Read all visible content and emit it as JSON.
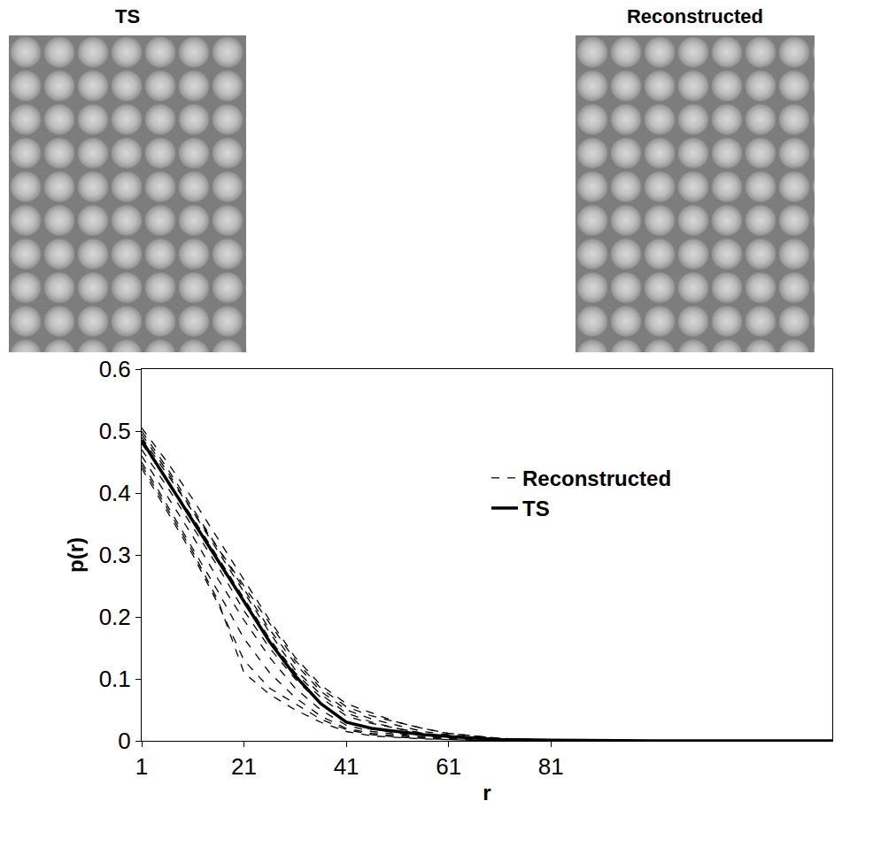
{
  "panels": [
    {
      "title": "TS"
    },
    {
      "title": "Reconstructed"
    }
  ],
  "chart_data": {
    "type": "line",
    "x_label": "r",
    "y_label": "p(r)",
    "x": [
      1,
      6,
      11,
      16,
      21,
      26,
      31,
      36,
      41,
      46,
      51,
      56,
      61,
      71,
      81,
      101,
      136
    ],
    "xlim": [
      1,
      136
    ],
    "xticks": [
      1,
      21,
      41,
      61,
      81
    ],
    "ylim": [
      0,
      0.6
    ],
    "yticks": [
      0,
      0.1,
      0.2,
      0.3,
      0.4,
      0.5,
      0.6
    ],
    "grid": false,
    "legend": "upper right",
    "series": [
      {
        "name": "TS",
        "color": "#000000",
        "line_style": "solid",
        "values": [
          0.485,
          0.42,
          0.355,
          0.29,
          0.225,
          0.16,
          0.105,
          0.06,
          0.03,
          0.02,
          0.015,
          0.01,
          0.007,
          0.002,
          0.001,
          0,
          0
        ]
      },
      {
        "name": "Reconstructed",
        "color": "#000000",
        "line_style": "dash",
        "values": [
          0.505,
          0.45,
          0.39,
          0.325,
          0.26,
          0.195,
          0.135,
          0.09,
          0.06,
          0.045,
          0.03,
          0.02,
          0.012,
          0.004,
          0.001,
          0,
          0
        ]
      },
      {
        "name": "Reconstructed",
        "color": "#000000",
        "line_style": "dash",
        "values": [
          0.5,
          0.44,
          0.375,
          0.31,
          0.245,
          0.18,
          0.125,
          0.08,
          0.05,
          0.035,
          0.025,
          0.015,
          0.01,
          0.003,
          0.001,
          0,
          0
        ]
      },
      {
        "name": "Reconstructed",
        "color": "#000000",
        "line_style": "dash",
        "values": [
          0.49,
          0.43,
          0.37,
          0.305,
          0.24,
          0.175,
          0.115,
          0.075,
          0.045,
          0.03,
          0.02,
          0.012,
          0.008,
          0.002,
          0.001,
          0,
          0
        ]
      },
      {
        "name": "Reconstructed",
        "color": "#000000",
        "line_style": "dash",
        "values": [
          0.48,
          0.42,
          0.36,
          0.295,
          0.23,
          0.165,
          0.11,
          0.07,
          0.04,
          0.028,
          0.02,
          0.012,
          0.007,
          0.002,
          0,
          0,
          0
        ]
      },
      {
        "name": "Reconstructed",
        "color": "#000000",
        "line_style": "dash",
        "values": [
          0.47,
          0.41,
          0.345,
          0.28,
          0.21,
          0.15,
          0.1,
          0.06,
          0.03,
          0.02,
          0.012,
          0.008,
          0.005,
          0.001,
          0,
          0,
          0
        ]
      },
      {
        "name": "Reconstructed",
        "color": "#000000",
        "line_style": "dash",
        "values": [
          0.46,
          0.395,
          0.33,
          0.26,
          0.195,
          0.135,
          0.085,
          0.05,
          0.025,
          0.015,
          0.01,
          0.006,
          0.004,
          0.001,
          0,
          0,
          0
        ]
      },
      {
        "name": "Reconstructed",
        "color": "#000000",
        "line_style": "dash",
        "values": [
          0.45,
          0.38,
          0.31,
          0.24,
          0.165,
          0.11,
          0.07,
          0.04,
          0.02,
          0.012,
          0.008,
          0.005,
          0.003,
          0.001,
          0,
          0,
          0
        ]
      },
      {
        "name": "Reconstructed",
        "color": "#000000",
        "line_style": "dash",
        "values": [
          0.44,
          0.37,
          0.3,
          0.22,
          0.13,
          0.085,
          0.06,
          0.035,
          0.018,
          0.01,
          0.006,
          0.004,
          0.002,
          0,
          0,
          0,
          0
        ]
      },
      {
        "name": "Reconstructed",
        "color": "#000000",
        "line_style": "dash",
        "values": [
          0.445,
          0.375,
          0.305,
          0.225,
          0.11,
          0.075,
          0.05,
          0.03,
          0.015,
          0.008,
          0.005,
          0.003,
          0.002,
          0,
          0,
          0,
          0
        ]
      },
      {
        "name": "Reconstructed",
        "color": "#000000",
        "line_style": "dash",
        "values": [
          0.495,
          0.435,
          0.37,
          0.31,
          0.25,
          0.19,
          0.13,
          0.085,
          0.055,
          0.04,
          0.03,
          0.02,
          0.012,
          0.004,
          0.001,
          0,
          0
        ]
      }
    ]
  }
}
